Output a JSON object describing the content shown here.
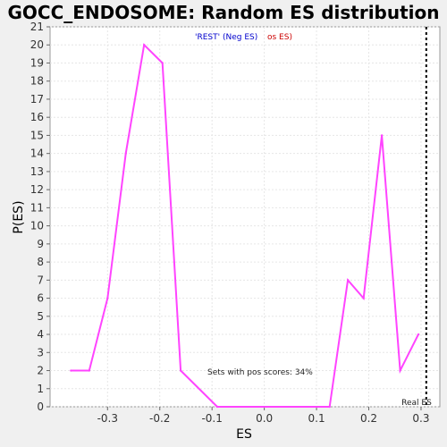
{
  "chart_data": {
    "type": "line",
    "title": "GOCC_ENDOSOME: Random ES distribution",
    "xlabel": "ES",
    "ylabel": "P(ES)",
    "xlim": [
      -0.41,
      0.336
    ],
    "ylim": [
      0,
      21
    ],
    "xticks": [
      "-0.3",
      "-0.2",
      "-0.1",
      "0.0",
      "0.1",
      "0.2",
      "0.3"
    ],
    "xtick_values": [
      -0.3,
      -0.2,
      -0.1,
      0.0,
      0.1,
      0.2,
      0.3
    ],
    "yticks": [
      "0",
      "1",
      "2",
      "3",
      "4",
      "5",
      "6",
      "7",
      "8",
      "9",
      "10",
      "11",
      "12",
      "13",
      "14",
      "15",
      "16",
      "17",
      "18",
      "19",
      "20",
      "21"
    ],
    "grid": true,
    "series": [
      {
        "color": "#ff44ff",
        "x": [
          -0.37,
          -0.335,
          -0.3,
          -0.265,
          -0.23,
          -0.195,
          -0.16,
          -0.09,
          0.125,
          0.16,
          0.19,
          0.225,
          0.26,
          0.295
        ],
        "values": [
          2,
          2,
          6,
          14,
          20,
          19,
          2,
          0,
          0,
          7,
          6,
          15,
          2,
          4
        ]
      }
    ],
    "legend": {
      "rest_label": "'REST' (Neg ES)",
      "rest_color": "#0000cc",
      "pos_label": "os ES)",
      "pos_color": "#cc0000"
    },
    "real_es": 0.31,
    "real_es_label": "Real ES",
    "annotation": "Sets with pos scores: 34%"
  }
}
